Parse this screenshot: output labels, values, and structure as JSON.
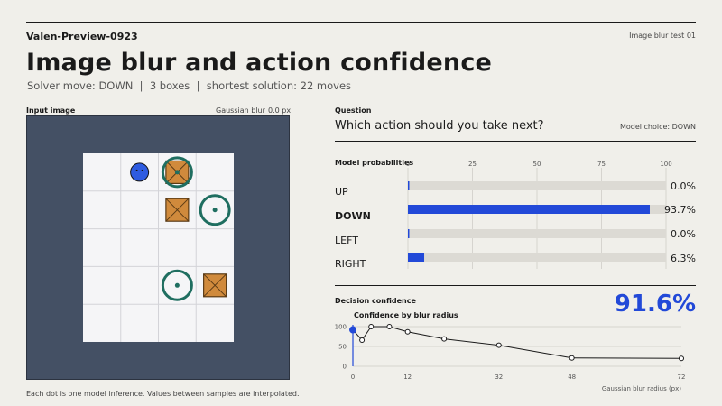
{
  "header": {
    "brand": "Valen-Preview-0923",
    "test_id": "Image blur test 01",
    "title": "Image blur and action confidence",
    "subtitle": "Solver move: DOWN  |  3 boxes  |  shortest solution: 22 moves"
  },
  "input_panel": {
    "label": "Input image",
    "blur_label": "Gaussian blur",
    "blur_value": "0.0 px",
    "caption": "Each dot is one model inference. Values between samples are interpolated."
  },
  "question_panel": {
    "label": "Question",
    "question": "Which action should you take next?",
    "model_choice": "Model choice: DOWN"
  },
  "probabilities": {
    "label": "Model probabilities",
    "ticks": [
      "0",
      "25",
      "50",
      "75",
      "100"
    ],
    "actions": [
      {
        "label": "UP",
        "value": 0.0,
        "text": "0.0%",
        "bold": false
      },
      {
        "label": "DOWN",
        "value": 93.7,
        "text": "93.7%",
        "bold": true
      },
      {
        "label": "LEFT",
        "value": 0.0,
        "text": "0.0%",
        "bold": false
      },
      {
        "label": "RIGHT",
        "value": 6.3,
        "text": "6.3%",
        "bold": false
      }
    ],
    "bar_color": "#2249d8",
    "track_color": "#dcdad4"
  },
  "confidence": {
    "label": "Decision confidence",
    "value_text": "91.6%",
    "accent": "#2249d8"
  },
  "chart_data": {
    "type": "line",
    "title": "Confidence by blur radius",
    "xlabel": "Gaussian blur radius (px)",
    "ylabel": "",
    "x_ticks": [
      0,
      12,
      32,
      48,
      72
    ],
    "y_ticks": [
      0,
      50,
      100
    ],
    "xlim": [
      0,
      72
    ],
    "ylim": [
      0,
      100
    ],
    "series": [
      {
        "x": [
          0,
          2,
          4,
          8,
          12,
          20,
          32,
          48,
          72
        ],
        "values": [
          92,
          66,
          100,
          100,
          87,
          69,
          53,
          21,
          20
        ]
      }
    ],
    "current_x": 0,
    "line_color": "#1a1a1a",
    "current_color": "#2249d8"
  },
  "board": {
    "cols": 4,
    "rows": 5,
    "frame_color": "#445064",
    "box_color": "#d08a3c",
    "target_color": "#1f6e60",
    "player_color": "#2e5be0",
    "player": {
      "col": 1,
      "row": 0
    },
    "boxes": [
      {
        "col": 2,
        "row": 0
      },
      {
        "col": 2,
        "row": 1
      },
      {
        "col": 3,
        "row": 3
      }
    ],
    "targets": [
      {
        "col": 2,
        "row": 0
      },
      {
        "col": 3,
        "row": 1
      },
      {
        "col": 2,
        "row": 3
      }
    ]
  }
}
